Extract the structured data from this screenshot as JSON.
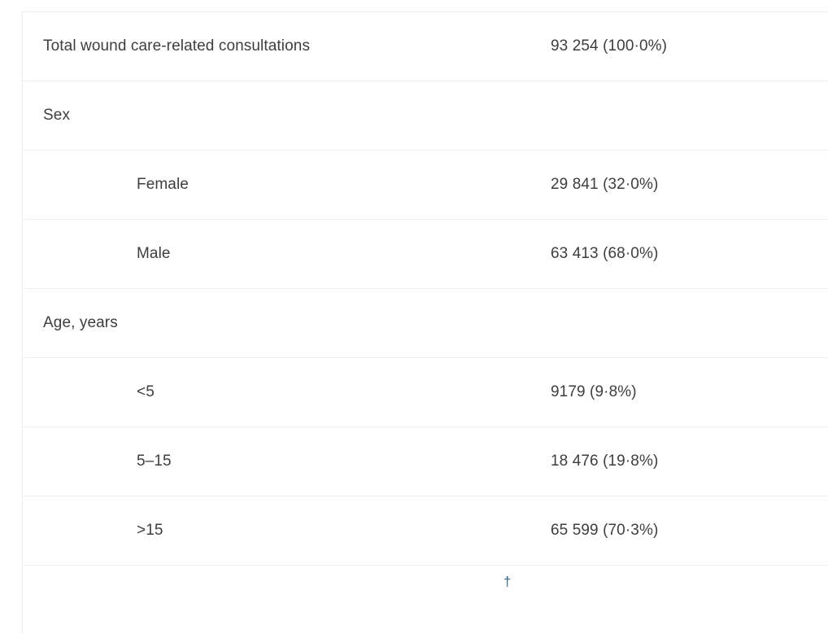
{
  "table": {
    "rows": [
      {
        "label": "Total wound care-related consultations",
        "value": "93 254 (100·0%)",
        "indent": false,
        "kind": "data"
      },
      {
        "label": "Sex",
        "value": "",
        "indent": false,
        "kind": "section"
      },
      {
        "label": "Female",
        "value": "29 841 (32·0%)",
        "indent": true,
        "kind": "data"
      },
      {
        "label": "Male",
        "value": "63 413 (68·0%)",
        "indent": true,
        "kind": "data"
      },
      {
        "label": "Age, years",
        "value": "",
        "indent": false,
        "kind": "section"
      },
      {
        "label": "<5",
        "value": "9179 (9·8%)",
        "indent": true,
        "kind": "data"
      },
      {
        "label": "5–15",
        "value": "18 476 (19·8%)",
        "indent": true,
        "kind": "data"
      },
      {
        "label": ">15",
        "value": "65 599 (70·3%)",
        "indent": true,
        "kind": "data"
      }
    ],
    "partial_next_row": {
      "footnote_marker": "†"
    }
  },
  "colors": {
    "text": "#3e3e3e",
    "border": "#efefef",
    "background": "#ffffff",
    "footnote_link": "#2f6484"
  }
}
